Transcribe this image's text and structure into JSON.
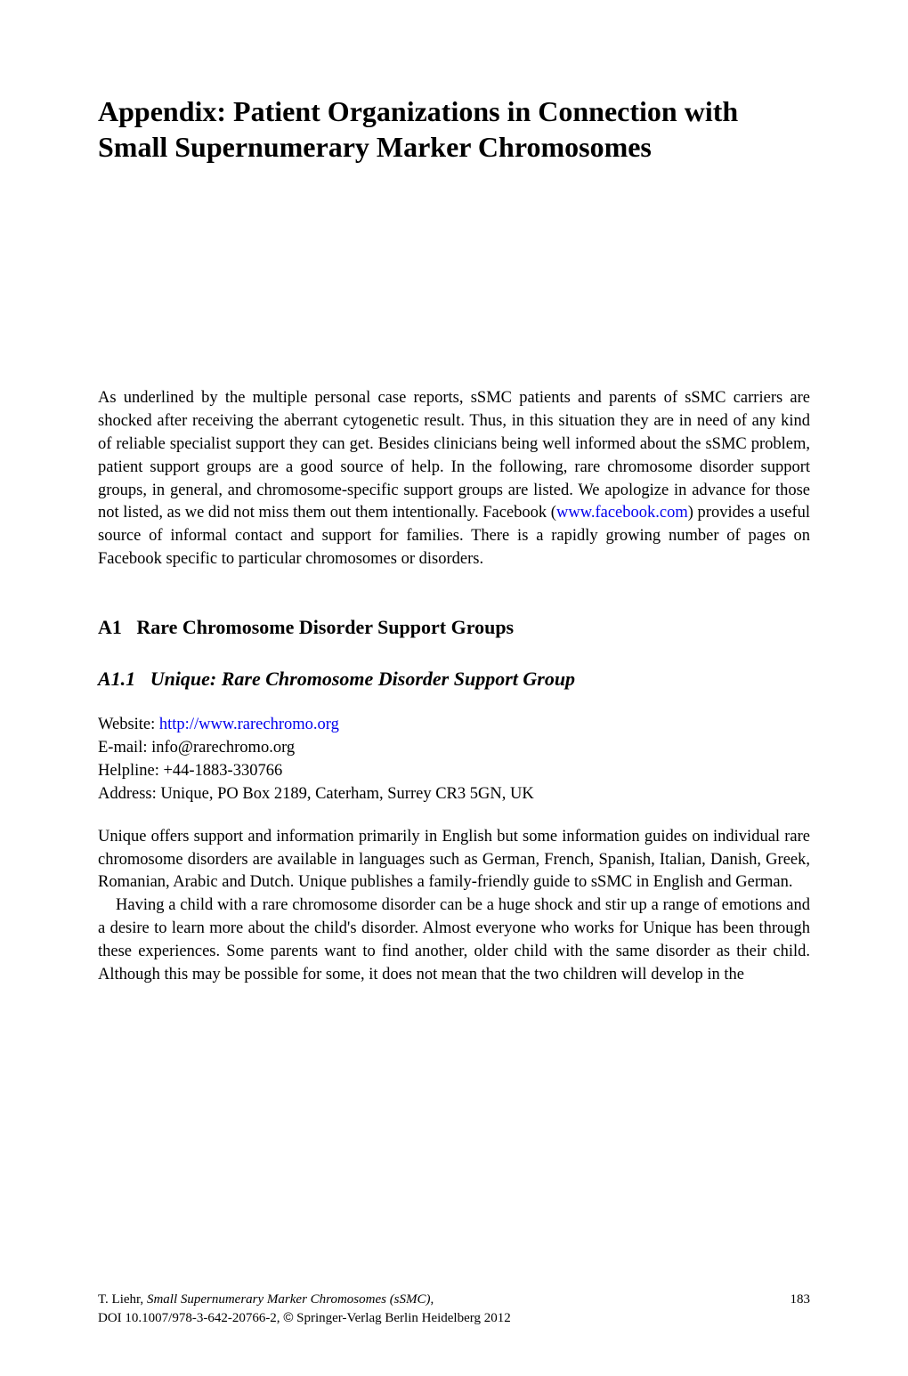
{
  "title": "Appendix: Patient Organizations in Connection with Small Supernumerary Marker Chromosomes",
  "intro": {
    "text_before_link": "As underlined by the multiple personal case reports, sSMC patients and parents of sSMC carriers are shocked after receiving the aberrant cytogenetic result. Thus, in this situation they are in need of any kind of reliable specialist support they can get. Besides clinicians being well informed about the sSMC problem, patient support groups are a good source of help. In the following, rare chromosome disorder support groups, in general, and chromosome-specific support groups are listed. We apologize in advance for those not listed, as we did not miss them out them intentionally. Facebook (",
    "link_text": "www.facebook.com",
    "text_after_link": ") provides a useful source of informal contact and support for families. There is a rapidly growing number of pages on Facebook specific to particular chromosomes or disorders."
  },
  "section_a1": {
    "number": "A1",
    "title": "Rare Chromosome Disorder Support Groups"
  },
  "section_a11": {
    "number": "A1.1",
    "title": "Unique: Rare Chromosome Disorder Support Group"
  },
  "contact": {
    "website_label": "Website: ",
    "website_url": "http://www.rarechromo.org",
    "email": "E-mail: info@rarechromo.org",
    "helpline": "Helpline: +44-1883-330766",
    "address": "Address: Unique, PO Box 2189, Caterham, Surrey CR3 5GN, UK"
  },
  "body_p1": "Unique offers support and information primarily in English but some information guides on individual rare chromosome disorders are available in languages such as German, French, Spanish, Italian, Danish, Greek, Romanian, Arabic and Dutch. Unique publishes a family-friendly guide to sSMC in English and German.",
  "body_p2": "Having a child with a rare chromosome disorder can be a huge shock and stir up a range of emotions and a desire to learn more about the child's disorder. Almost everyone who works for Unique has been through these experiences. Some parents want to find another, older child with the same disorder as their child. Although this may be possible for some, it does not mean that the two children will develop in the",
  "footer": {
    "author": "T. Liehr, ",
    "book_title": "Small Supernumerary Marker Chromosomes (sSMC)",
    "doi_line": "DOI 10.1007/978-3-642-20766-2, ",
    "copyright": " Springer-Verlag Berlin Heidelberg 2012",
    "page_number": "183"
  }
}
